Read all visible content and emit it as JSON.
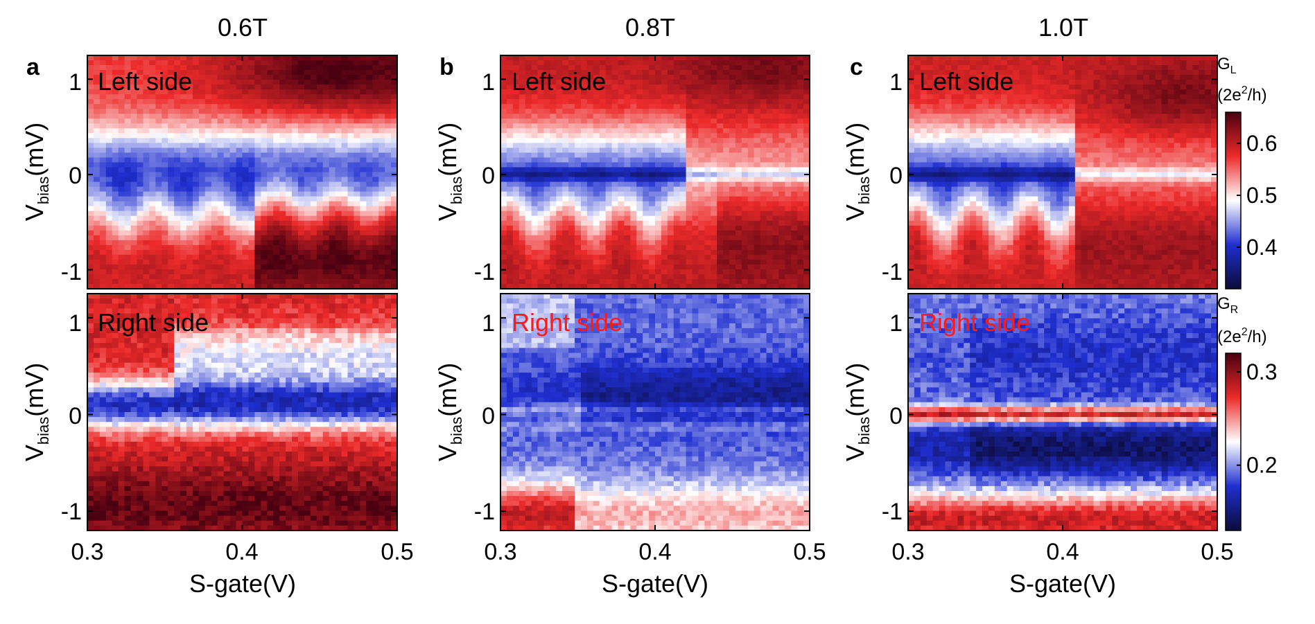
{
  "chart_data": {
    "type": "heatmap",
    "panels": [
      {
        "letter": "a",
        "title": "0.6T",
        "x_label": "S-gate(V)",
        "x_ticks": [
          "0.3",
          "0.4",
          "0.5"
        ],
        "x_tick_values": [
          0.3,
          0.4,
          0.5
        ],
        "xlim": [
          0.3,
          0.5
        ],
        "top": {
          "label": "Left side",
          "label_color": "#000000",
          "profile": "a_left"
        },
        "bottom": {
          "label": "Right side",
          "label_color": "#000000",
          "profile": "a_right"
        }
      },
      {
        "letter": "b",
        "title": "0.8T",
        "x_label": "S-gate(V)",
        "x_ticks": [
          "0.3",
          "0.4",
          "0.5"
        ],
        "x_tick_values": [
          0.3,
          0.4,
          0.5
        ],
        "xlim": [
          0.3,
          0.5
        ],
        "top": {
          "label": "Left side",
          "label_color": "#000000",
          "profile": "b_left"
        },
        "bottom": {
          "label": "Right side",
          "label_color": "#ff1a1a",
          "profile": "b_right"
        }
      },
      {
        "letter": "c",
        "title": "1.0T",
        "x_label": "S-gate(V)",
        "x_ticks": [
          "0.3",
          "0.4",
          "0.5"
        ],
        "x_tick_values": [
          0.3,
          0.4,
          0.5
        ],
        "xlim": [
          0.3,
          0.5
        ],
        "top": {
          "label": "Left side",
          "label_color": "#000000",
          "profile": "c_left"
        },
        "bottom": {
          "label": "Right side",
          "label_color": "#ff1a1a",
          "profile": "c_right"
        }
      }
    ],
    "y_label_main": "V",
    "y_label_sub": "bias",
    "y_label_unit": "(mV)",
    "y_ticks": [
      "1",
      "0",
      "-1"
    ],
    "y_tick_values": [
      1,
      0,
      -1
    ],
    "ylim": [
      -1.2,
      1.25
    ],
    "colorbars": [
      {
        "symbol_main": "G",
        "symbol_sub": "L",
        "unit_a": "(2e",
        "unit_sup": "2",
        "unit_b": "/h)",
        "range": [
          0.32,
          0.66
        ],
        "ticks": [
          "0.6",
          "0.5",
          "0.4"
        ],
        "tick_values": [
          0.6,
          0.5,
          0.4
        ]
      },
      {
        "symbol_main": "G",
        "symbol_sub": "R",
        "unit_a": "(2e",
        "unit_sup": "2",
        "unit_b": "/h)",
        "range": [
          0.13,
          0.32
        ],
        "ticks": [
          "0.3",
          "0.2"
        ],
        "tick_values": [
          0.3,
          0.2
        ]
      }
    ],
    "colormap": [
      "#0b0b3a",
      "#1f2fd0",
      "#ffffff",
      "#ec2a2a",
      "#4a0010"
    ]
  }
}
